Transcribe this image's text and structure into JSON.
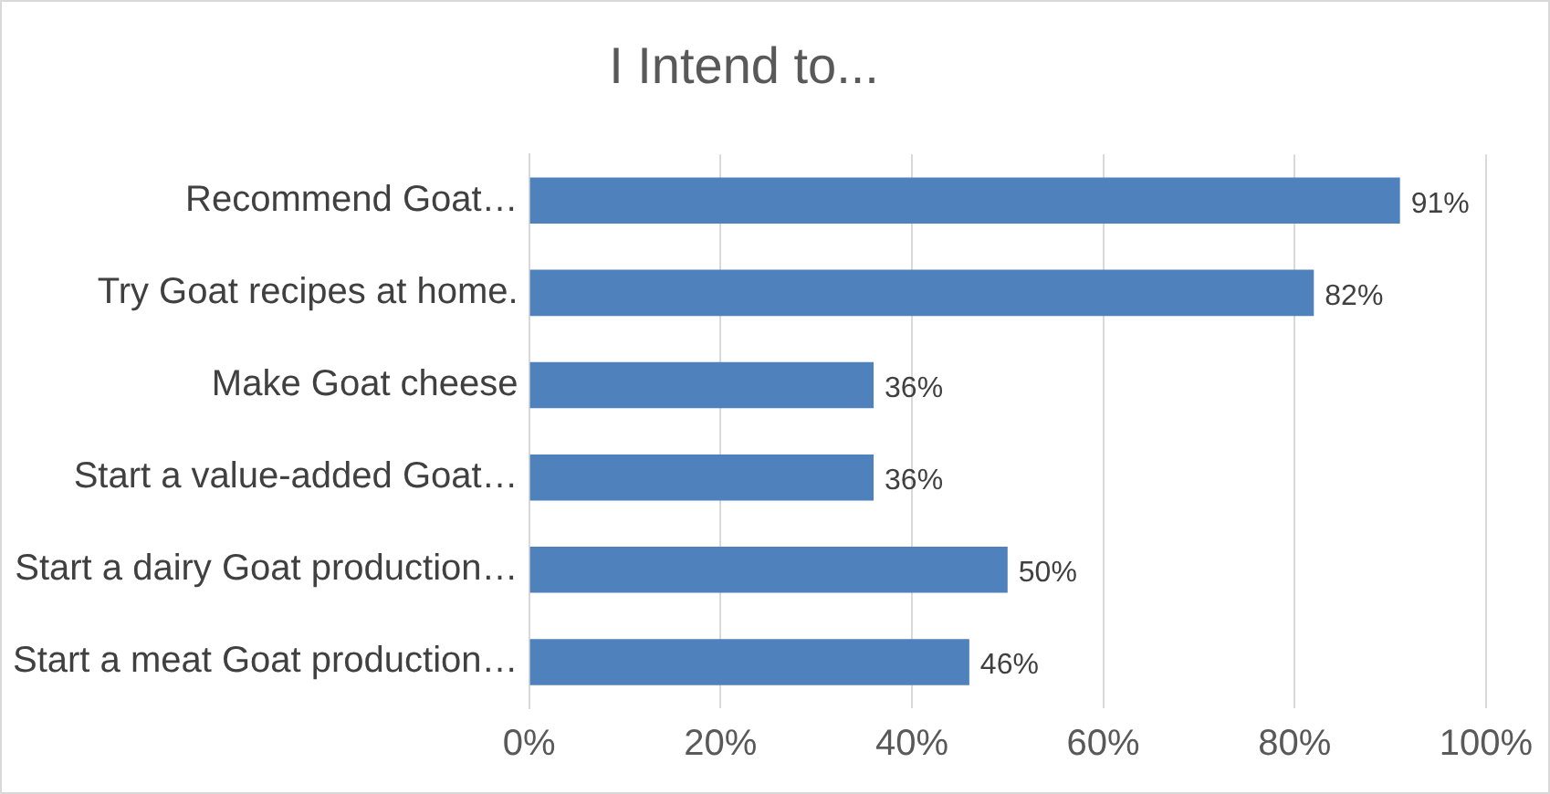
{
  "chart_data": {
    "type": "bar",
    "orientation": "horizontal",
    "title": "I Intend to...",
    "categories": [
      "Recommend Goat…",
      "Try Goat recipes at home.",
      "Make Goat cheese",
      "Start a value-added Goat…",
      "Start a dairy Goat production…",
      "Start a meat Goat production…"
    ],
    "values": [
      91,
      82,
      36,
      36,
      50,
      46
    ],
    "value_labels": [
      "91%",
      "82%",
      "36%",
      "36%",
      "50%",
      "46%"
    ],
    "color": "#4f81bd",
    "xlim": [
      0,
      100
    ],
    "xticks": [
      {
        "value": 0,
        "label": "0%"
      },
      {
        "value": 20,
        "label": "20%"
      },
      {
        "value": 40,
        "label": "40%"
      },
      {
        "value": 60,
        "label": "60%"
      },
      {
        "value": 80,
        "label": "80%"
      },
      {
        "value": 100,
        "label": "100%"
      }
    ],
    "grid": "x",
    "legend": false
  }
}
